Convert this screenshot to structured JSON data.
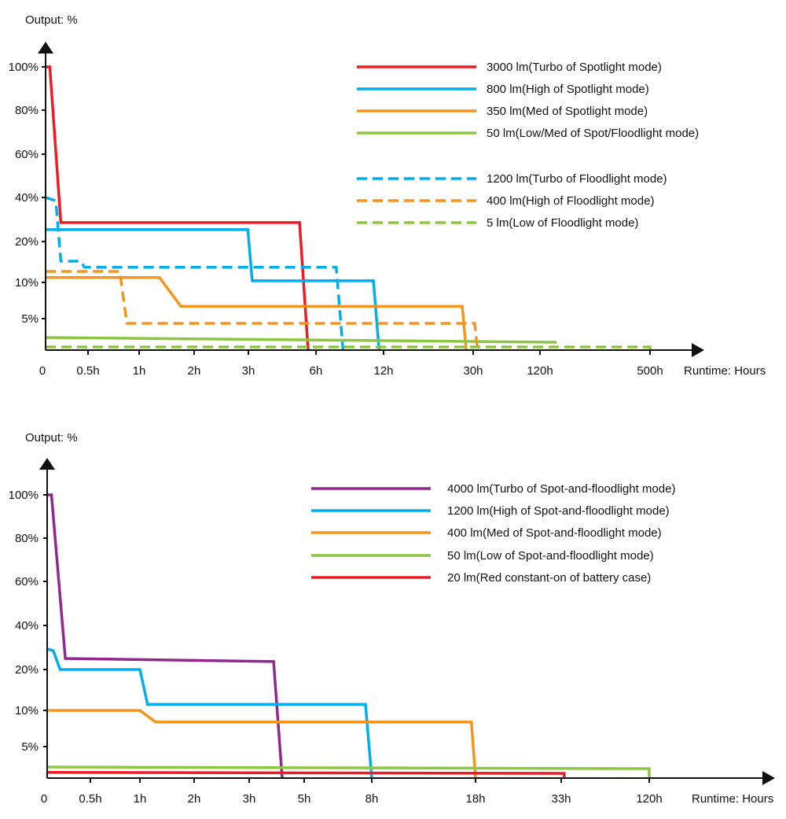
{
  "chart_data": [
    {
      "type": "line",
      "title": "",
      "ylabel": "Output: %",
      "xlabel": "Runtime: Hours",
      "x_scale": "non-uniform (tick-spaced)",
      "y_scale": "non-uniform (tick-spaced)",
      "xlim": [
        0,
        500
      ],
      "ylim": [
        0,
        100
      ],
      "grid": false,
      "legend_position": "top-right",
      "x_ticks": [
        {
          "value": 0,
          "label": "0"
        },
        {
          "value": 0.5,
          "label": "0.5h"
        },
        {
          "value": 1,
          "label": "1h"
        },
        {
          "value": 2,
          "label": "2h"
        },
        {
          "value": 3,
          "label": "3h"
        },
        {
          "value": 6,
          "label": "6h"
        },
        {
          "value": 12,
          "label": "12h"
        },
        {
          "value": 30,
          "label": "30h"
        },
        {
          "value": 120,
          "label": "120h"
        },
        {
          "value": 500,
          "label": "500h"
        }
      ],
      "y_ticks": [
        {
          "value": 5,
          "label": "5%"
        },
        {
          "value": 10,
          "label": "10%"
        },
        {
          "value": 20,
          "label": "20%"
        },
        {
          "value": 40,
          "label": "40%"
        },
        {
          "value": 60,
          "label": "60%"
        },
        {
          "value": 80,
          "label": "80%"
        },
        {
          "value": 100,
          "label": "100%"
        }
      ],
      "series": [
        {
          "name": "3000 lm(Turbo of Spotlight mode)",
          "color": "#ed1c24",
          "line_style": "solid",
          "points": [
            [
              0,
              100
            ],
            [
              0.05,
              100
            ],
            [
              0.18,
              28.6
            ],
            [
              5.27,
              28.6
            ],
            [
              5.65,
              0
            ]
          ]
        },
        {
          "name": "800 lm(High of Spotlight mode)",
          "color": "#00aeef",
          "line_style": "solid",
          "points": [
            [
              0,
              25.4
            ],
            [
              2.99,
              25.4
            ],
            [
              3.17,
              10.4
            ],
            [
              11.1,
              10.4
            ],
            [
              11.6,
              0
            ]
          ]
        },
        {
          "name": "350 lm(Med of Spotlight mode)",
          "color": "#f7941d",
          "line_style": "solid",
          "points": [
            [
              0,
              11.2
            ],
            [
              1.37,
              11.2
            ],
            [
              1.76,
              6.7
            ],
            [
              27.8,
              6.7
            ],
            [
              28.6,
              0
            ]
          ]
        },
        {
          "name": "50 lm(Low/Med of Spot/Floodlight mode)",
          "color": "#8dc63f",
          "line_style": "solid",
          "points": [
            [
              0,
              2.0
            ],
            [
              177,
              1.25
            ]
          ]
        },
        {
          "name": "1200 lm(Turbo of Floodlight mode)",
          "color": "#00aeef",
          "line_style": "dashed",
          "points": [
            [
              0,
              40
            ],
            [
              0.12,
              38.5
            ],
            [
              0.18,
              15.2
            ],
            [
              0.41,
              15.2
            ],
            [
              0.46,
              13.7
            ],
            [
              7.8,
              13.7
            ],
            [
              8.4,
              0
            ]
          ]
        },
        {
          "name": "400 lm(High of Floodlight mode)",
          "color": "#f7941d",
          "line_style": "dashed",
          "points": [
            [
              0,
              12.7
            ],
            [
              0.81,
              12.7
            ],
            [
              0.88,
              4.25
            ],
            [
              32,
              4.25
            ],
            [
              36,
              0
            ]
          ]
        },
        {
          "name": "5 lm(Low of Floodlight mode)",
          "color": "#8dc63f",
          "line_style": "dashed",
          "points": [
            [
              0,
              0.5
            ],
            [
              500,
              0.5
            ],
            [
              500,
              0
            ]
          ]
        }
      ]
    },
    {
      "type": "line",
      "title": "",
      "ylabel": "Output: %",
      "xlabel": "Runtime: Hours",
      "x_scale": "non-uniform (tick-spaced)",
      "y_scale": "non-uniform (tick-spaced)",
      "xlim": [
        0,
        120
      ],
      "ylim": [
        0,
        100
      ],
      "grid": false,
      "legend_position": "top-right",
      "x_ticks": [
        {
          "value": 0,
          "label": "0"
        },
        {
          "value": 0.5,
          "label": "0.5h"
        },
        {
          "value": 1,
          "label": "1h"
        },
        {
          "value": 2,
          "label": "2h"
        },
        {
          "value": 3,
          "label": "3h"
        },
        {
          "value": 5,
          "label": "5h"
        },
        {
          "value": 8,
          "label": "8h"
        },
        {
          "value": 18,
          "label": "18h"
        },
        {
          "value": 33,
          "label": "33h"
        },
        {
          "value": 120,
          "label": "120h"
        }
      ],
      "y_ticks": [
        {
          "value": 5,
          "label": "5%"
        },
        {
          "value": 10,
          "label": "10%"
        },
        {
          "value": 20,
          "label": "20%"
        },
        {
          "value": 40,
          "label": "40%"
        },
        {
          "value": 60,
          "label": "60%"
        },
        {
          "value": 80,
          "label": "80%"
        },
        {
          "value": 100,
          "label": "100%"
        }
      ],
      "series": [
        {
          "name": "4000 lm(Turbo of Spot-and-floodlight mode)",
          "color": "#92278f",
          "line_style": "solid",
          "points": [
            [
              0,
              100
            ],
            [
              0.05,
              100
            ],
            [
              0.21,
              25
            ],
            [
              3.89,
              23.6
            ],
            [
              4.2,
              0
            ]
          ]
        },
        {
          "name": "1200 lm(High of Spot-and-floodlight mode)",
          "color": "#00aeef",
          "line_style": "solid",
          "points": [
            [
              0,
              29.3
            ],
            [
              0.07,
              28.6
            ],
            [
              0.15,
              20
            ],
            [
              1,
              20
            ],
            [
              1.14,
              11.5
            ],
            [
              7.72,
              11.5
            ],
            [
              8,
              0
            ]
          ]
        },
        {
          "name": "400 lm(Med of Spot-and-floodlight mode)",
          "color": "#f7941d",
          "line_style": "solid",
          "points": [
            [
              0,
              10
            ],
            [
              1,
              10
            ],
            [
              1.29,
              8.4
            ],
            [
              17.6,
              8.4
            ],
            [
              18,
              0
            ]
          ]
        },
        {
          "name": "50 lm(Low of Spot-and-floodlight mode)",
          "color": "#8dc63f",
          "line_style": "solid",
          "points": [
            [
              0,
              1.75
            ],
            [
              120,
              1.5
            ],
            [
              120,
              0
            ]
          ]
        },
        {
          "name": "20 lm(Red constant-on of battery case)",
          "color": "#ed1c24",
          "line_style": "solid",
          "points": [
            [
              0,
              0.9
            ],
            [
              36,
              0.75
            ],
            [
              36,
              0
            ]
          ]
        }
      ]
    }
  ]
}
